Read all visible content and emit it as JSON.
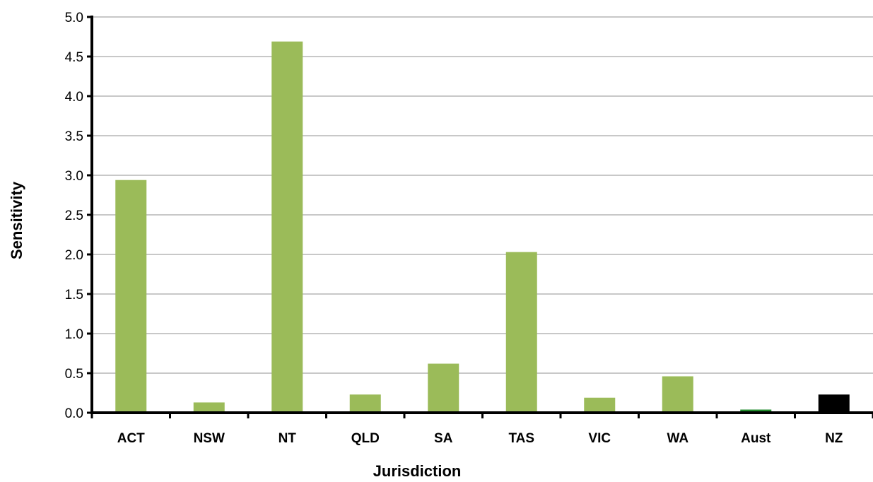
{
  "chart_data": {
    "type": "bar",
    "title": "",
    "xlabel": "Jurisdiction",
    "ylabel": "Sensitivity",
    "ylim": [
      0,
      5.0
    ],
    "yticks": [
      "0.0",
      "0.5",
      "1.0",
      "1.5",
      "2.0",
      "2.5",
      "3.0",
      "3.5",
      "4.0",
      "4.5",
      "5.0"
    ],
    "categories": [
      "ACT",
      "NSW",
      "NT",
      "QLD",
      "SA",
      "TAS",
      "VIC",
      "WA",
      "Aust",
      "NZ"
    ],
    "values": [
      2.94,
      0.13,
      4.69,
      0.23,
      0.62,
      2.03,
      0.19,
      0.46,
      0.04,
      0.23
    ],
    "bar_colors": [
      "#9bbb59",
      "#9bbb59",
      "#9bbb59",
      "#9bbb59",
      "#9bbb59",
      "#9bbb59",
      "#9bbb59",
      "#9bbb59",
      "#1f8a2a",
      "#000000"
    ],
    "grid": true,
    "legend": "none"
  }
}
